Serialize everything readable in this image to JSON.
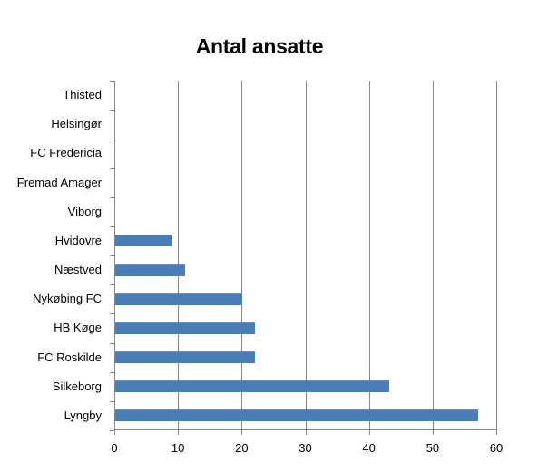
{
  "chart_data": {
    "type": "bar",
    "orientation": "horizontal",
    "title": "Antal ansatte",
    "xlabel": "",
    "ylabel": "",
    "categories": [
      "Thisted",
      "Helsingør",
      "FC Fredericia",
      "Fremad Amager",
      "Viborg",
      "Hvidovre",
      "Næstved",
      "Nykøbing FC",
      "HB Køge",
      "FC Roskilde",
      "Silkeborg",
      "Lyngby"
    ],
    "values": [
      0,
      0,
      0,
      0,
      0,
      9,
      11,
      20,
      22,
      22,
      43,
      57
    ],
    "xlim": [
      0,
      60
    ],
    "xticks": [
      "0",
      "10",
      "20",
      "30",
      "40",
      "50",
      "60"
    ],
    "grid": "vertical major gridlines",
    "legend": "none",
    "bar_color": "#4a7ebb"
  }
}
